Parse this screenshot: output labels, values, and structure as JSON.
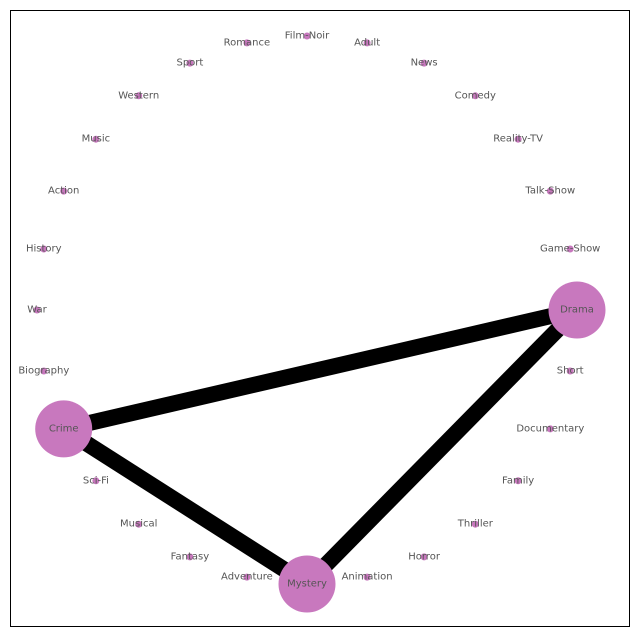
{
  "graph": {
    "node_color": "#c878be",
    "edge_color": "#000000",
    "label_color": "#555555",
    "nodes": [
      {
        "id": "Drama",
        "label": "Drama",
        "major": true
      },
      {
        "id": "Short",
        "label": "Short",
        "major": false
      },
      {
        "id": "Documentary",
        "label": "Documentary",
        "major": false
      },
      {
        "id": "Family",
        "label": "Family",
        "major": false
      },
      {
        "id": "Thriller",
        "label": "Thriller",
        "major": false
      },
      {
        "id": "Horror",
        "label": "Horror",
        "major": false
      },
      {
        "id": "Animation",
        "label": "Animation",
        "major": false
      },
      {
        "id": "Mystery",
        "label": "Mystery",
        "major": true
      },
      {
        "id": "Adventure",
        "label": "Adventure",
        "major": false
      },
      {
        "id": "Fantasy",
        "label": "Fantasy",
        "major": false
      },
      {
        "id": "Musical",
        "label": "Musical",
        "major": false
      },
      {
        "id": "Sci-Fi",
        "label": "Sci-Fi",
        "major": false
      },
      {
        "id": "Crime",
        "label": "Crime",
        "major": true
      },
      {
        "id": "Biography",
        "label": "Biography",
        "major": false
      },
      {
        "id": "War",
        "label": "War",
        "major": false
      },
      {
        "id": "History",
        "label": "History",
        "major": false
      },
      {
        "id": "Action",
        "label": "Action",
        "major": false
      },
      {
        "id": "Music",
        "label": "Music",
        "major": false
      },
      {
        "id": "Western",
        "label": "Western",
        "major": false
      },
      {
        "id": "Sport",
        "label": "Sport",
        "major": false
      },
      {
        "id": "Romance",
        "label": "Romance",
        "major": false
      },
      {
        "id": "Film-Noir",
        "label": "Film-Noir",
        "major": false
      },
      {
        "id": "Adult",
        "label": "Adult",
        "major": false
      },
      {
        "id": "News",
        "label": "News",
        "major": false
      },
      {
        "id": "Comedy",
        "label": "Comedy",
        "major": false
      },
      {
        "id": "Reality-TV",
        "label": "Reality-TV",
        "major": false
      },
      {
        "id": "Talk-Show",
        "label": "Talk-Show",
        "major": false
      },
      {
        "id": "Game-Show",
        "label": "Game-Show",
        "major": false
      }
    ],
    "edges": [
      {
        "source": "Crime",
        "target": "Drama"
      },
      {
        "source": "Drama",
        "target": "Mystery"
      },
      {
        "source": "Crime",
        "target": "Mystery"
      }
    ]
  }
}
